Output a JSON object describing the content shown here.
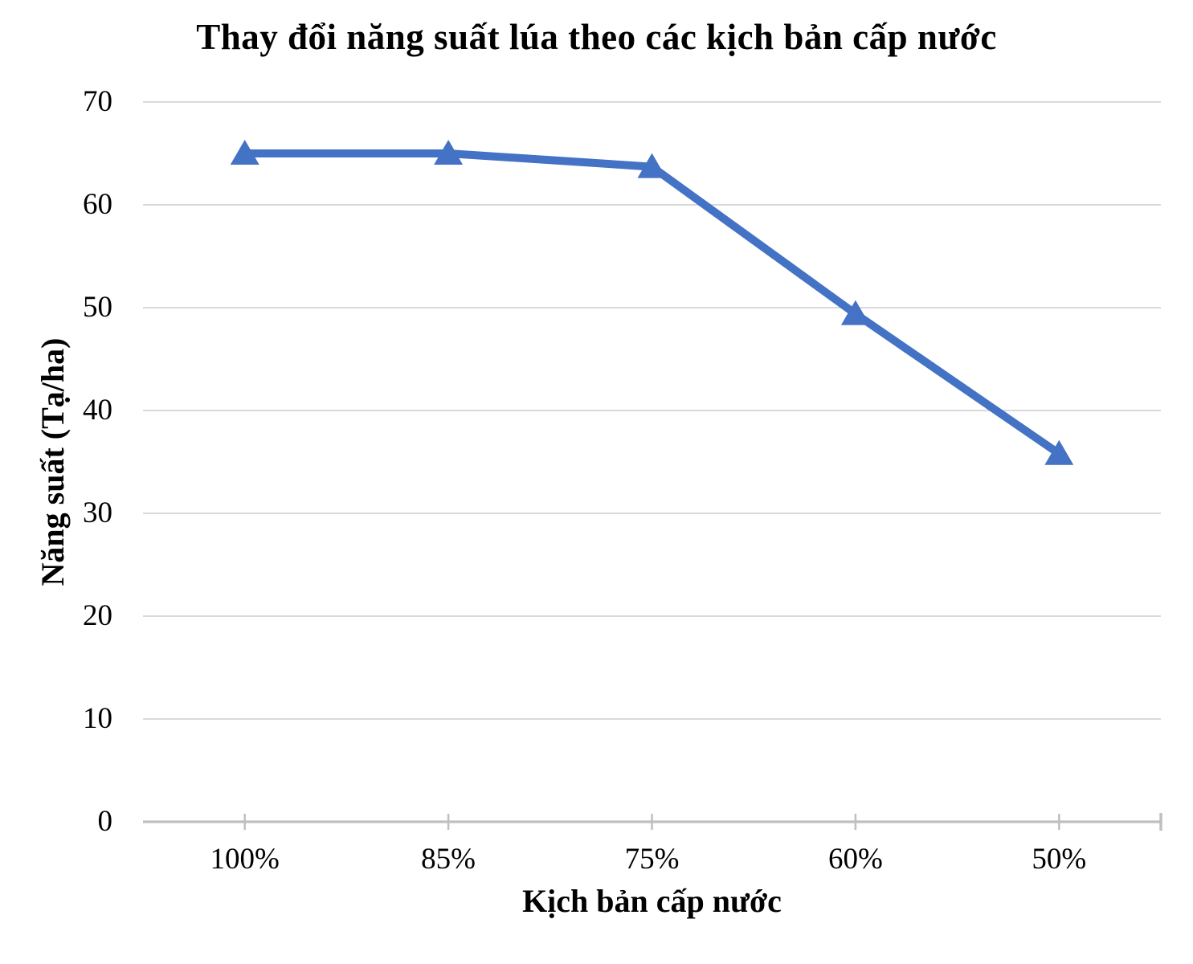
{
  "chart_data": {
    "type": "line",
    "title": "Thay đổi năng suất lúa theo các kịch bản cấp nước",
    "xlabel": "Kịch bản cấp nước",
    "ylabel": "Năng suất (Tạ/ha)",
    "categories": [
      "100%",
      "85%",
      "75%",
      "60%",
      "50%"
    ],
    "series": [
      {
        "values": [
          65,
          65,
          63.7,
          49.4,
          35.8
        ],
        "color": "#4472C4",
        "marker": "triangle-up"
      }
    ],
    "ylim": [
      0,
      70
    ],
    "yticks": [
      0,
      10,
      20,
      30,
      40,
      50,
      60,
      70
    ],
    "grid": "horizontal",
    "legend": "none",
    "gridline_color": "#D9D9D9",
    "axis_line_color": "#BFBFBF",
    "text_color": "#000000",
    "background_color": "#FFFFFF"
  }
}
